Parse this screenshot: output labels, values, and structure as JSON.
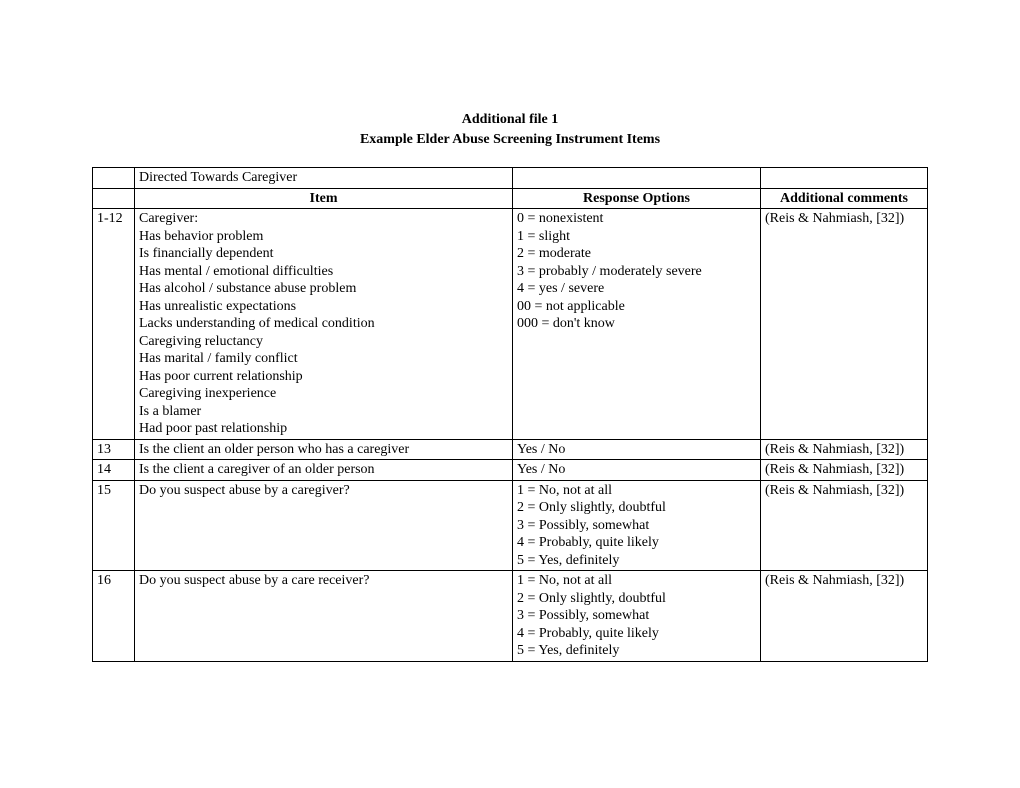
{
  "document": {
    "title_line1": "Additional file 1",
    "title_line2": "Example Elder Abuse Screening Instrument Items"
  },
  "table": {
    "section_header": "Directed Towards Caregiver",
    "columns": {
      "id": "",
      "item": "Item",
      "response": "Response Options",
      "comments": "Additional comments"
    },
    "rows": [
      {
        "id": "1-12",
        "item": "Caregiver:\nHas behavior problem\nIs financially dependent\nHas mental / emotional difficulties\nHas alcohol / substance abuse problem\nHas unrealistic expectations\nLacks understanding of medical condition\nCaregiving reluctancy\nHas marital / family conflict\nHas poor current relationship\nCaregiving inexperience\nIs a blamer\nHad poor past relationship",
        "response": "0 = nonexistent\n1 = slight\n2 = moderate\n3 = probably / moderately severe\n4 = yes / severe\n00 = not applicable\n000 = don't know",
        "comments": "(Reis & Nahmiash, [32])"
      },
      {
        "id": "13",
        "item": "Is the client an older person who has a caregiver",
        "response": "Yes / No",
        "comments": "(Reis & Nahmiash, [32])"
      },
      {
        "id": "14",
        "item": "Is the client a caregiver of an older person",
        "response": "Yes / No",
        "comments": "(Reis & Nahmiash, [32])"
      },
      {
        "id": "15",
        "item": "Do you suspect abuse by a caregiver?",
        "response": "1 = No, not at all\n2 = Only slightly, doubtful\n3 = Possibly, somewhat\n4 = Probably, quite likely\n5 = Yes, definitely",
        "comments": "(Reis & Nahmiash, [32])"
      },
      {
        "id": "16",
        "item": "Do you suspect abuse by a care receiver?",
        "response": "1 = No, not at all\n2 = Only slightly, doubtful\n3 = Possibly, somewhat\n4 = Probably, quite likely\n5 = Yes, definitely",
        "comments": "(Reis & Nahmiash, [32])"
      }
    ]
  }
}
